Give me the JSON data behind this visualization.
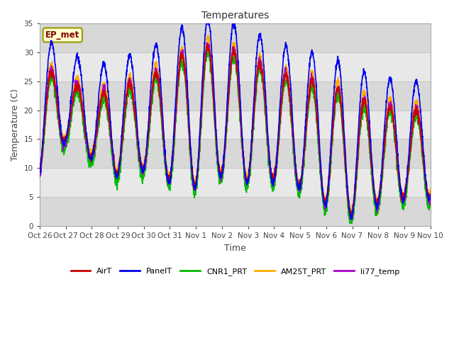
{
  "title": "Temperatures",
  "ylabel": "Temperature (C)",
  "xlabel": "Time",
  "ylim": [
    0,
    35
  ],
  "yticks": [
    0,
    5,
    10,
    15,
    20,
    25,
    30,
    35
  ],
  "series": {
    "AirT": {
      "color": "#cc0000"
    },
    "PanelT": {
      "color": "#0000ee"
    },
    "CNR1_PRT": {
      "color": "#00bb00"
    },
    "AM25T_PRT": {
      "color": "#ffaa00"
    },
    "li77_temp": {
      "color": "#aa00cc"
    }
  },
  "xtick_labels": [
    "Oct 26",
    "Oct 27",
    "Oct 28",
    "Oct 29",
    "Oct 30",
    "Oct 31",
    "Nov 1",
    "Nov 2",
    "Nov 3",
    "Nov 4",
    "Nov 5",
    "Nov 6",
    "Nov 7",
    "Nov 8",
    "Nov 9",
    "Nov 10"
  ],
  "annotation": "EP_met",
  "plot_bg": "#e8e8e8",
  "band_light": "#e8e8e8",
  "band_dark": "#d8d8d8",
  "fig_bg": "#ffffff",
  "grid_color": "#c8c8c8",
  "n_days": 15
}
